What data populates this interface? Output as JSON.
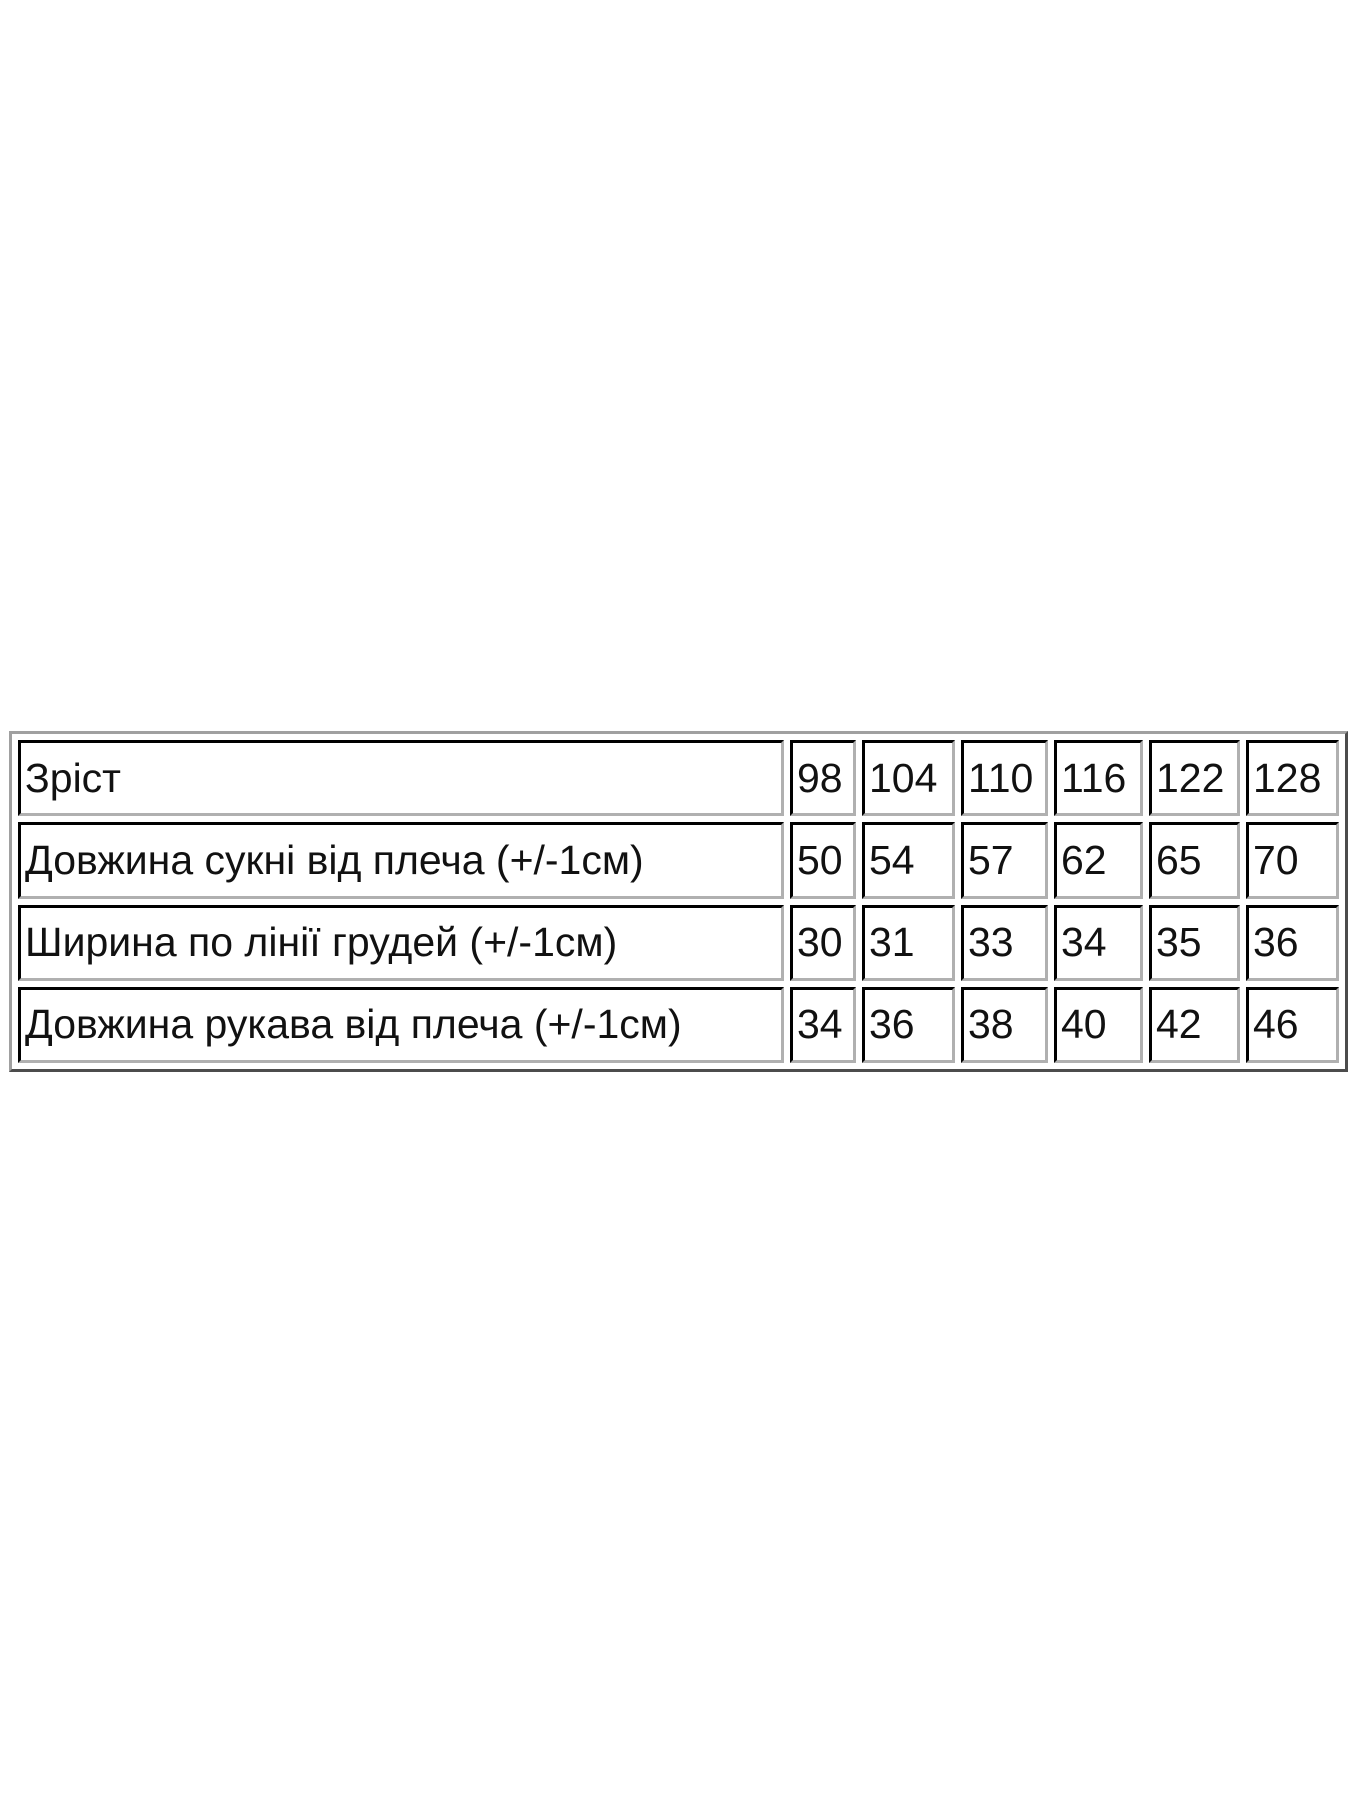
{
  "size_table": {
    "rows": [
      {
        "label": "Зріст",
        "values": [
          "98",
          "104",
          "110",
          "116",
          "122",
          "128"
        ]
      },
      {
        "label": "Довжина сукні від плеча (+/-1см)",
        "values": [
          "50",
          "54",
          "57",
          "62",
          "65",
          "70"
        ]
      },
      {
        "label": "Ширина по лінії грудей (+/-1см)",
        "values": [
          "30",
          "31",
          "33",
          "34",
          "35",
          "36"
        ]
      },
      {
        "label": "Довжина рукава від плеча (+/-1см)",
        "values": [
          "34",
          "36",
          "38",
          "40",
          "42",
          "46"
        ]
      }
    ]
  }
}
